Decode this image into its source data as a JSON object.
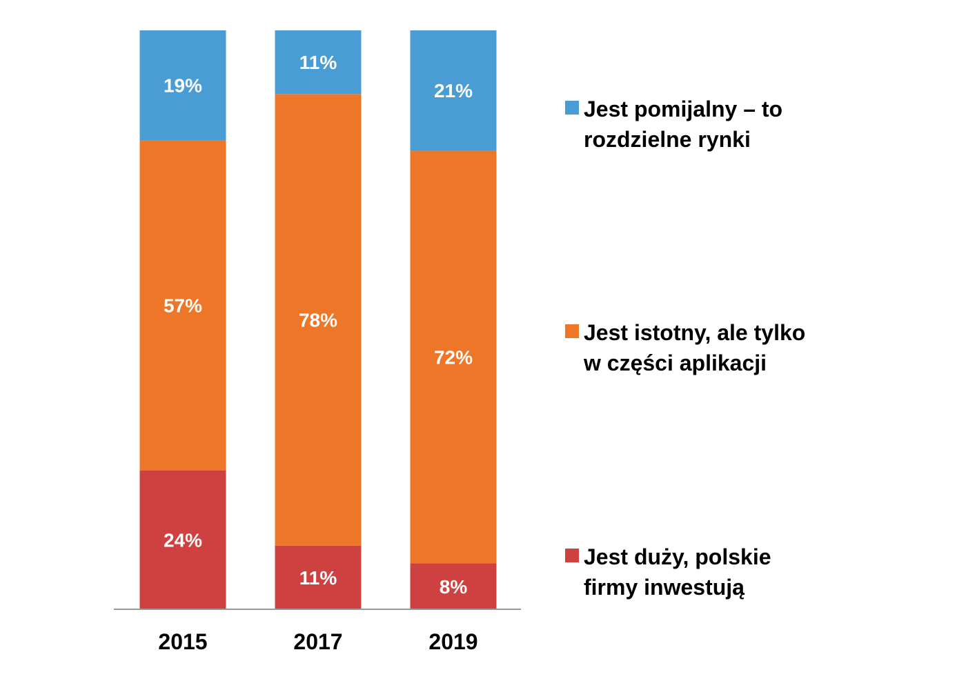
{
  "chart_data": {
    "type": "bar",
    "stacked": true,
    "normalized_percent": true,
    "categories": [
      "2015",
      "2017",
      "2019"
    ],
    "series": [
      {
        "name": "Jest duży, polskie firmy inwestują",
        "legend_lines": [
          "Jest duży, polskie",
          "firmy inwestują"
        ],
        "values": [
          24,
          11,
          8
        ],
        "labels": [
          "24%",
          "11%",
          "8%"
        ],
        "color": "#cf4141"
      },
      {
        "name": "Jest istotny, ale tylko w części aplikacji",
        "legend_lines": [
          "Jest istotny, ale tylko",
          "w części aplikacji"
        ],
        "values": [
          57,
          78,
          72
        ],
        "labels": [
          "57%",
          "78%",
          "72%"
        ],
        "color": "#ee7628"
      },
      {
        "name": "Jest pomijalny – to rozdzielne rynki",
        "legend_lines": [
          "Jest pomijalny – to",
          "rozdzielne rynki"
        ],
        "values": [
          19,
          11,
          21
        ],
        "labels": [
          "19%",
          "11%",
          "21%"
        ],
        "color": "#4a9cd5"
      }
    ],
    "legend_position": "right",
    "legend_order": [
      2,
      1,
      0
    ],
    "axis_line_color": "#9a9a9a",
    "grid": false
  }
}
